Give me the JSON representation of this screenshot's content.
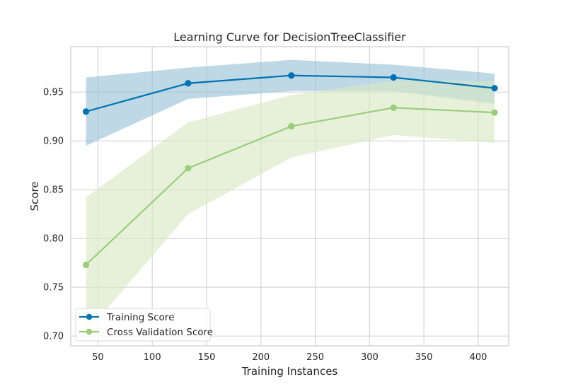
{
  "chart_data": {
    "type": "line",
    "title": "Learning Curve for DecisionTreeClassifier",
    "xlabel": "Training Instances",
    "ylabel": "Score",
    "xlim": [
      25,
      428
    ],
    "ylim": [
      0.69,
      0.9965
    ],
    "x_ticks": [
      50,
      100,
      150,
      200,
      250,
      300,
      350,
      400
    ],
    "x_tick_labels": [
      "50",
      "100",
      "150",
      "200",
      "250",
      "300",
      "350",
      "400"
    ],
    "y_ticks": [
      0.7,
      0.75,
      0.8,
      0.85,
      0.9,
      0.95
    ],
    "y_tick_labels": [
      "0.70",
      "0.75",
      "0.80",
      "0.85",
      "0.90",
      "0.95"
    ],
    "grid": true,
    "legend_position": "lower-left",
    "x": [
      39,
      133,
      228,
      322,
      415
    ],
    "series": [
      {
        "name": "Training Score",
        "color": "#0072b2",
        "band_color": "#8fbcd4",
        "values": [
          0.93,
          0.959,
          0.967,
          0.965,
          0.954
        ],
        "upper": [
          0.965,
          0.975,
          0.983,
          0.978,
          0.969
        ],
        "lower": [
          0.895,
          0.943,
          0.951,
          0.951,
          0.938
        ]
      },
      {
        "name": "Cross Validation Score",
        "color": "#9acd7c",
        "band_color": "#d9e8c4",
        "values": [
          0.773,
          0.872,
          0.915,
          0.934,
          0.929
        ],
        "upper": [
          0.842,
          0.919,
          0.947,
          0.962,
          0.961
        ],
        "lower": [
          0.703,
          0.825,
          0.883,
          0.906,
          0.898
        ]
      }
    ]
  }
}
